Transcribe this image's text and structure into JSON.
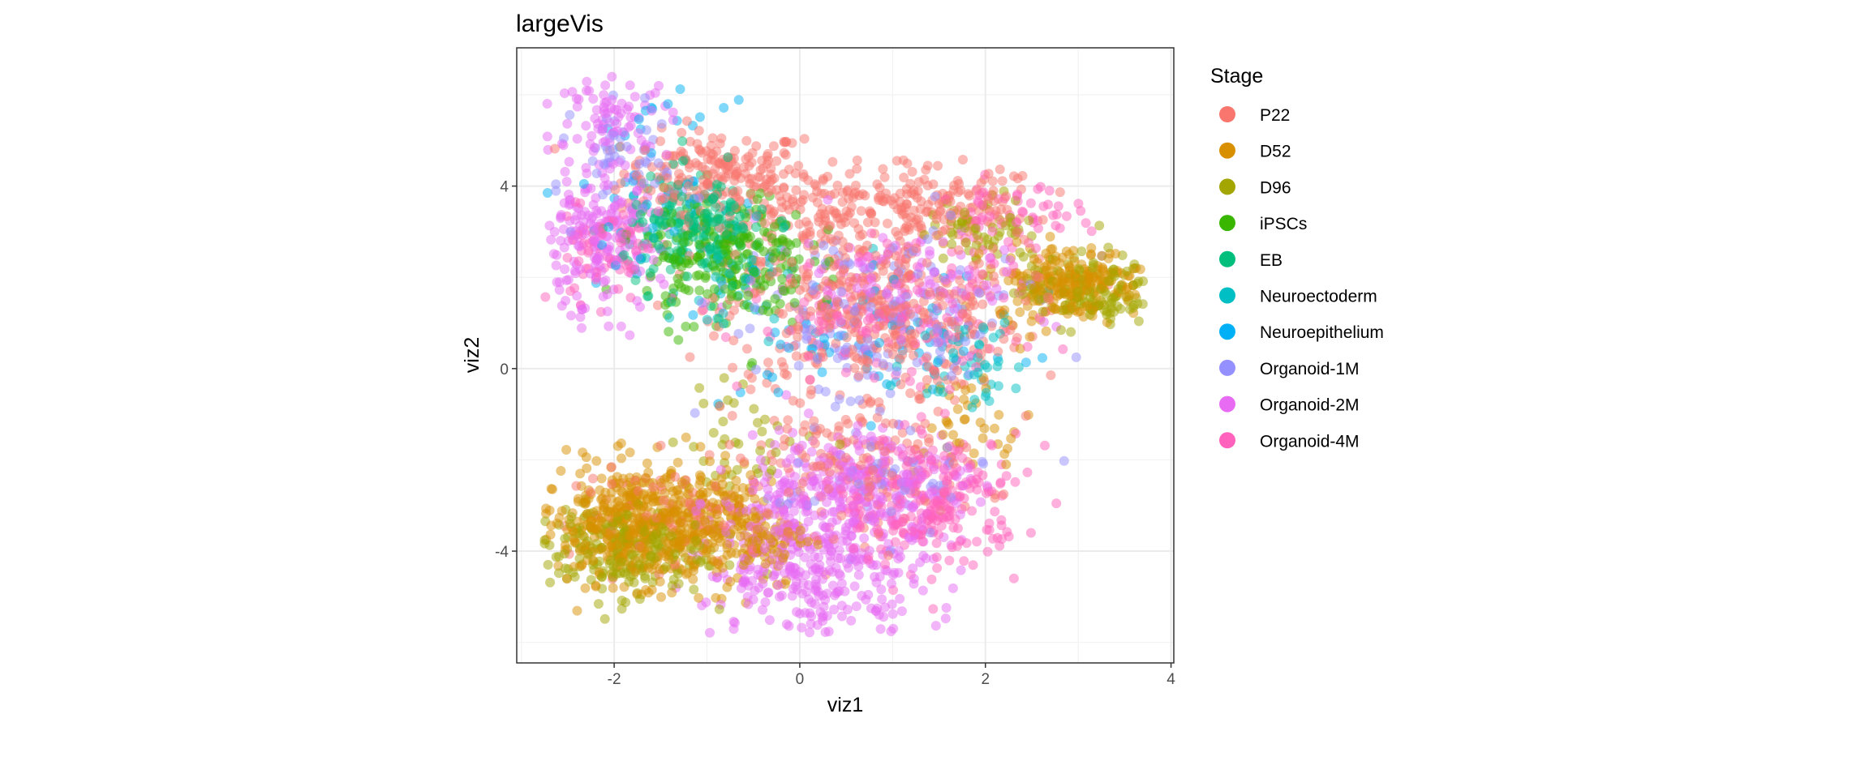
{
  "chart_data": {
    "type": "scatter",
    "title": "largeVis",
    "xlabel": "viz1",
    "ylabel": "viz2",
    "xlim": [
      -3.05,
      4.03
    ],
    "ylim": [
      -6.45,
      7.03
    ],
    "x_ticks": [
      -2,
      0,
      2,
      4
    ],
    "y_ticks": [
      -4,
      0,
      4
    ],
    "x_tick_labels": [
      "-2",
      "0",
      "2",
      "4"
    ],
    "y_tick_labels": [
      "-4",
      "0",
      "4"
    ],
    "grid": true,
    "point_alpha": 0.5,
    "legend": {
      "title": "Stage",
      "placement": "right",
      "entries": [
        "P22",
        "D52",
        "D96",
        "iPSCs",
        "EB",
        "Neuroectoderm",
        "Neuroepithelium",
        "Organoid-1M",
        "Organoid-2M",
        "Organoid-4M"
      ]
    },
    "series": [
      {
        "name": "P22",
        "color": "#F8766D",
        "clusters": [
          {
            "center": [
              -0.9,
              4.3
            ],
            "sd": [
              0.5,
              0.45
            ],
            "n": 180
          },
          {
            "center": [
              0.4,
              3.4
            ],
            "sd": [
              0.8,
              0.5
            ],
            "n": 200
          },
          {
            "center": [
              1.6,
              3.6
            ],
            "sd": [
              0.5,
              0.4
            ],
            "n": 100
          },
          {
            "center": [
              0.8,
              1.2
            ],
            "sd": [
              0.8,
              0.8
            ],
            "n": 380
          },
          {
            "center": [
              0.6,
              -2.0
            ],
            "sd": [
              0.7,
              0.8
            ],
            "n": 160
          },
          {
            "center": [
              -1.2,
              -3.2
            ],
            "sd": [
              0.6,
              0.5
            ],
            "n": 80
          }
        ]
      },
      {
        "name": "D52",
        "color": "#D89000",
        "clusters": [
          {
            "center": [
              -1.7,
              -3.4
            ],
            "sd": [
              0.55,
              0.65
            ],
            "n": 520
          },
          {
            "center": [
              -0.7,
              -3.6
            ],
            "sd": [
              0.4,
              0.6
            ],
            "n": 150
          },
          {
            "center": [
              2.9,
              1.9
            ],
            "sd": [
              0.4,
              0.4
            ],
            "n": 220
          },
          {
            "center": [
              1.9,
              -1.2
            ],
            "sd": [
              0.3,
              0.6
            ],
            "n": 40
          }
        ]
      },
      {
        "name": "D96",
        "color": "#A3A500",
        "clusters": [
          {
            "center": [
              -2.0,
              -4.0
            ],
            "sd": [
              0.5,
              0.5
            ],
            "n": 220
          },
          {
            "center": [
              3.1,
              1.7
            ],
            "sd": [
              0.35,
              0.4
            ],
            "n": 150
          },
          {
            "center": [
              2.0,
              3.1
            ],
            "sd": [
              0.3,
              0.35
            ],
            "n": 60
          },
          {
            "center": [
              -0.6,
              -1.5
            ],
            "sd": [
              0.4,
              0.6
            ],
            "n": 40
          }
        ]
      },
      {
        "name": "iPSCs",
        "color": "#39B600",
        "clusters": [
          {
            "center": [
              -0.8,
              2.4
            ],
            "sd": [
              0.45,
              0.75
            ],
            "n": 240
          }
        ]
      },
      {
        "name": "EB",
        "color": "#00BF7D",
        "clusters": [
          {
            "center": [
              -1.1,
              3.0
            ],
            "sd": [
              0.4,
              0.6
            ],
            "n": 200
          }
        ]
      },
      {
        "name": "Neuroectoderm",
        "color": "#00BFC4",
        "clusters": [
          {
            "center": [
              1.8,
              0.2
            ],
            "sd": [
              0.3,
              0.5
            ],
            "n": 50
          },
          {
            "center": [
              -0.7,
              2.2
            ],
            "sd": [
              0.5,
              0.7
            ],
            "n": 40
          }
        ]
      },
      {
        "name": "Neuroepithelium",
        "color": "#00B0F6",
        "clusters": [
          {
            "center": [
              -1.6,
              4.0
            ],
            "sd": [
              0.4,
              0.9
            ],
            "n": 50
          },
          {
            "center": [
              0.8,
              0.6
            ],
            "sd": [
              0.8,
              0.8
            ],
            "n": 60
          }
        ]
      },
      {
        "name": "Organoid-1M",
        "color": "#9590FF",
        "clusters": [
          {
            "center": [
              0.8,
              1.0
            ],
            "sd": [
              0.8,
              1.0
            ],
            "n": 160
          },
          {
            "center": [
              -1.8,
              4.6
            ],
            "sd": [
              0.3,
              0.6
            ],
            "n": 50
          },
          {
            "center": [
              0.8,
              -2.5
            ],
            "sd": [
              0.6,
              0.6
            ],
            "n": 60
          }
        ]
      },
      {
        "name": "Organoid-2M",
        "color": "#E76BF3",
        "clusters": [
          {
            "center": [
              0.2,
              -4.2
            ],
            "sd": [
              0.6,
              0.9
            ],
            "n": 420
          },
          {
            "center": [
              0.6,
              -2.4
            ],
            "sd": [
              0.6,
              0.6
            ],
            "n": 200
          },
          {
            "center": [
              -2.2,
              2.8
            ],
            "sd": [
              0.35,
              0.8
            ],
            "n": 200
          },
          {
            "center": [
              -2.0,
              5.5
            ],
            "sd": [
              0.3,
              0.4
            ],
            "n": 80
          },
          {
            "center": [
              1.2,
              2.0
            ],
            "sd": [
              0.8,
              0.6
            ],
            "n": 100
          }
        ]
      },
      {
        "name": "Organoid-4M",
        "color": "#FF62BC",
        "clusters": [
          {
            "center": [
              1.4,
              -2.9
            ],
            "sd": [
              0.5,
              0.7
            ],
            "n": 260
          },
          {
            "center": [
              1.0,
              1.0
            ],
            "sd": [
              0.8,
              0.7
            ],
            "n": 150
          },
          {
            "center": [
              -2.1,
              2.6
            ],
            "sd": [
              0.3,
              0.6
            ],
            "n": 80
          },
          {
            "center": [
              2.3,
              3.3
            ],
            "sd": [
              0.4,
              0.4
            ],
            "n": 60
          }
        ]
      }
    ]
  }
}
